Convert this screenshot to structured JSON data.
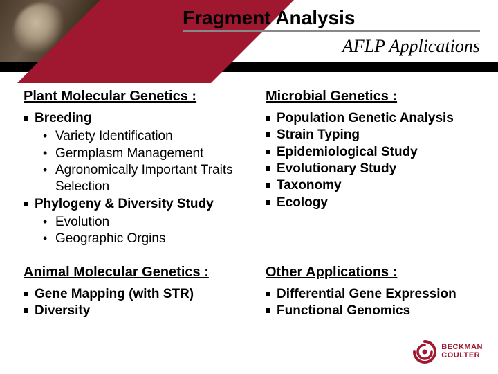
{
  "header": {
    "title": "Fragment Analysis",
    "subtitle": "AFLP Applications"
  },
  "sections": [
    {
      "heading": "Plant Molecular Genetics :",
      "items": [
        {
          "label": "Breeding",
          "sub": [
            "Variety Identification",
            "Germplasm Management",
            "Agronomically Important Traits Selection"
          ]
        },
        {
          "label": "Phylogeny & Diversity Study",
          "sub": [
            "Evolution",
            "Geographic Orgins"
          ]
        }
      ]
    },
    {
      "heading": "Microbial Genetics :",
      "items": [
        {
          "label": "Population Genetic Analysis"
        },
        {
          "label": "Strain Typing"
        },
        {
          "label": "Epidemiological Study"
        },
        {
          "label": "Evolutionary Study"
        },
        {
          "label": "Taxonomy"
        },
        {
          "label": "Ecology"
        }
      ]
    },
    {
      "heading": "Animal Molecular Genetics :",
      "items": [
        {
          "label": "Gene Mapping (with STR)"
        },
        {
          "label": "Diversity"
        }
      ]
    },
    {
      "heading": "Other Applications :",
      "items": [
        {
          "label": "Differential Gene Expression"
        },
        {
          "label": "Functional Genomics"
        }
      ]
    }
  ],
  "logo": {
    "line1": "BECKMAN",
    "line2": "COULTER",
    "color": "#a01830"
  },
  "colors": {
    "wedge": "#a01830",
    "bar": "#000000",
    "background": "#ffffff"
  }
}
